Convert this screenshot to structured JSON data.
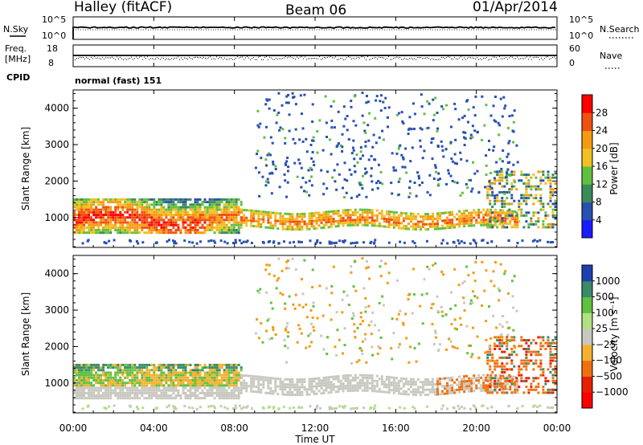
{
  "header": {
    "title_left": "Halley (fitACF)",
    "title_center": "Beam 06",
    "title_right": "01/Apr/2014"
  },
  "strip_labels": {
    "nsky": "N.Sky",
    "nsky_scale_top": "10^5",
    "nsky_scale_bottom": "10^0",
    "nsearch": "N.Search",
    "nsearch_scale_top": "10^5",
    "nsearch_scale_bottom": "10^0",
    "freq_line1": "Freq.",
    "freq_line2": "[MHz]",
    "freq_scale_top": "18",
    "freq_scale_bottom": "8",
    "nave": "Nave",
    "nave_scale_top": "60",
    "nave_scale_bottom": "0",
    "cpid": "CPID",
    "mode": "normal (fast) 151"
  },
  "chart_data": [
    {
      "type": "heatmap",
      "name": "power-panel",
      "ylabel": "Slant Range [km]",
      "xlabel": "",
      "x_ticks": [
        "00:00",
        "04:00",
        "08:00",
        "12:00",
        "16:00",
        "20:00",
        "00:00"
      ],
      "x_range_hours": [
        0,
        24
      ],
      "y_ticks": [
        1000,
        2000,
        3000,
        4000
      ],
      "ylim": [
        180,
        4500
      ],
      "colorbar": {
        "label": "Power [dB]",
        "ticks": [
          4,
          8,
          12,
          16,
          20,
          24,
          28
        ],
        "colors": [
          "#1a1aff",
          "#2850b0",
          "#3a8a5a",
          "#60c040",
          "#f0c020",
          "#f59a10",
          "#f05010",
          "#ff0000"
        ]
      },
      "features": [
        {
          "desc": "strong near-range band",
          "hours": [
            0,
            8
          ],
          "range_km": [
            600,
            1300
          ],
          "level": "high"
        },
        {
          "desc": "weak band",
          "hours": [
            9,
            22
          ],
          "range_km": [
            700,
            1200
          ],
          "level": "medium"
        }
      ]
    },
    {
      "type": "heatmap",
      "name": "velocity-panel",
      "ylabel": "Slant Range [km]",
      "xlabel": "Time UT",
      "x_ticks": [
        "00:00",
        "04:00",
        "08:00",
        "12:00",
        "16:00",
        "20:00",
        "00:00"
      ],
      "x_range_hours": [
        0,
        24
      ],
      "y_ticks": [
        1000,
        2000,
        3000,
        4000
      ],
      "ylim": [
        180,
        4500
      ],
      "colorbar": {
        "label": "Velocity [m s⁻¹]",
        "ticks": [
          "1000",
          "500",
          "100",
          "25",
          "−25",
          "−100",
          "−500",
          "−1000"
        ],
        "colors": [
          "#1f3fb0",
          "#3a8a6a",
          "#60c040",
          "#b0e080",
          "#c8c8c0",
          "#f5b030",
          "#f07010",
          "#e82000",
          "#ff0000"
        ]
      }
    }
  ]
}
